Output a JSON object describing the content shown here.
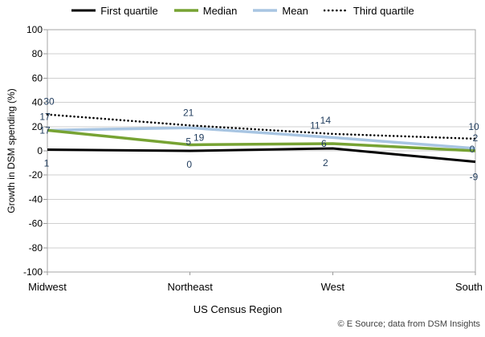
{
  "chart": {
    "footer": "© E Source; data from DSM Insights"
  },
  "chart_data": {
    "type": "line",
    "title": "",
    "categories": [
      "Midwest",
      "Northeast",
      "West",
      "South"
    ],
    "xlabel": "US Census Region",
    "ylabel": "Growth in DSM spending (%)",
    "ylim": [
      -100,
      100
    ],
    "ytick_step": 20,
    "grid": true,
    "legend_position": "top",
    "label_color": "#1f3b5c",
    "grid_color": "#cfcfcf",
    "border_color": "#a6a6a6",
    "tick_color": "#9a9a9a",
    "series": [
      {
        "name": "First quartile",
        "color": "#000000",
        "dash": "solid",
        "width": 3,
        "values": [
          1,
          0,
          2,
          -9
        ],
        "label_dx": [
          -1,
          -1,
          -9,
          -2
        ],
        "label_dy": [
          17,
          17,
          18,
          19
        ]
      },
      {
        "name": "Median",
        "color": "#77a333",
        "dash": "solid",
        "width": 3.5,
        "values": [
          17,
          5,
          6,
          0
        ],
        "label_dx": [
          -3,
          -2,
          -11,
          -4
        ],
        "label_dy": [
          0,
          -4,
          0,
          -2
        ]
      },
      {
        "name": "Mean",
        "color": "#a8c5e2",
        "dash": "solid",
        "width": 3.5,
        "values": [
          17,
          19,
          11,
          2
        ],
        "label_dx": [
          -3,
          11,
          -22,
          0
        ],
        "label_dy": [
          -17,
          12,
          -15,
          -13
        ]
      },
      {
        "name": "Third quartile",
        "color": "#000000",
        "dash": "dotted",
        "width": 2.6,
        "values": [
          30,
          21,
          14,
          10
        ],
        "label_dx": [
          2,
          -2,
          -9,
          -2
        ],
        "label_dy": [
          -16,
          -16,
          -17,
          -15
        ]
      }
    ]
  }
}
